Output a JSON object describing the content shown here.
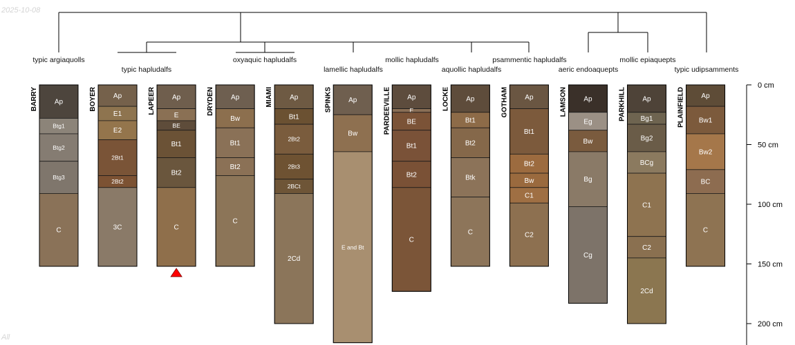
{
  "header": {
    "date_stamp": "2025-10-08",
    "corner_tag": "All"
  },
  "axis": {
    "unit": "cm",
    "max_depth": 200,
    "ticks": [
      {
        "depth": 0,
        "label": "0 cm"
      },
      {
        "depth": 50,
        "label": "50 cm"
      },
      {
        "depth": 100,
        "label": "100 cm"
      },
      {
        "depth": 150,
        "label": "150 cm"
      },
      {
        "depth": 200,
        "label": "200 cm"
      }
    ]
  },
  "taxa": [
    {
      "label": "typic argiaquolls"
    },
    {
      "label": "typic hapludalfs"
    },
    {
      "label": "oxyaquic hapludalfs"
    },
    {
      "label": "lamellic hapludalfs"
    },
    {
      "label": "mollic hapludalfs"
    },
    {
      "label": "aquollic hapludalfs"
    },
    {
      "label": "psammentic hapludalfs"
    },
    {
      "label": "aeric endoaquepts"
    },
    {
      "label": "mollic epiaquepts"
    },
    {
      "label": "typic udipsamments"
    }
  ],
  "profiles": [
    {
      "name": "BARRY",
      "horizons": [
        {
          "name": "Ap",
          "top": 0,
          "bottom": 28,
          "color": "#4d453d"
        },
        {
          "name": "Btg1",
          "top": 28,
          "bottom": 41,
          "color": "#8c8479"
        },
        {
          "name": "Btg2",
          "top": 41,
          "bottom": 64,
          "color": "#857c72"
        },
        {
          "name": "Btg3",
          "top": 64,
          "bottom": 91,
          "color": "#7f766c"
        },
        {
          "name": "C",
          "top": 91,
          "bottom": 152,
          "color": "#8a7258"
        }
      ]
    },
    {
      "name": "BOYER",
      "horizons": [
        {
          "name": "Ap",
          "top": 0,
          "bottom": 18,
          "color": "#75614b"
        },
        {
          "name": "E1",
          "top": 18,
          "bottom": 30,
          "color": "#8e744f"
        },
        {
          "name": "E2",
          "top": 30,
          "bottom": 46,
          "color": "#94754c"
        },
        {
          "name": "2Bt1",
          "top": 46,
          "bottom": 76,
          "color": "#7a5437"
        },
        {
          "name": "2Bt2",
          "top": 76,
          "bottom": 86,
          "color": "#7c5233"
        },
        {
          "name": "3C",
          "top": 86,
          "bottom": 152,
          "color": "#8a7a68"
        }
      ]
    },
    {
      "name": "LAPEER",
      "horizons": [
        {
          "name": "Ap",
          "top": 0,
          "bottom": 20,
          "color": "#6f5e4d"
        },
        {
          "name": "E",
          "top": 20,
          "bottom": 30,
          "color": "#8a7054"
        },
        {
          "name": "BE",
          "top": 30,
          "bottom": 38,
          "color": "#5e4c3a"
        },
        {
          "name": "Bt1",
          "top": 38,
          "bottom": 61,
          "color": "#6b5236"
        },
        {
          "name": "Bt2",
          "top": 61,
          "bottom": 86,
          "color": "#6a563d"
        },
        {
          "name": "C",
          "top": 86,
          "bottom": 152,
          "color": "#8f6f4b"
        }
      ],
      "marker": true
    },
    {
      "name": "DRYDEN",
      "horizons": [
        {
          "name": "Ap",
          "top": 0,
          "bottom": 20,
          "color": "#6e5f50"
        },
        {
          "name": "Bw",
          "top": 20,
          "bottom": 36,
          "color": "#8c6f4e"
        },
        {
          "name": "Bt1",
          "top": 36,
          "bottom": 61,
          "color": "#8a7157"
        },
        {
          "name": "Bt2",
          "top": 61,
          "bottom": 76,
          "color": "#8b7156"
        },
        {
          "name": "C",
          "top": 76,
          "bottom": 152,
          "color": "#8c7558"
        }
      ]
    },
    {
      "name": "MIAMI",
      "horizons": [
        {
          "name": "Ap",
          "top": 0,
          "bottom": 20,
          "color": "#6e5a43"
        },
        {
          "name": "Bt1",
          "top": 20,
          "bottom": 33,
          "color": "#6b5132"
        },
        {
          "name": "2Bt2",
          "top": 33,
          "bottom": 58,
          "color": "#7a5c3d"
        },
        {
          "name": "2Bt3",
          "top": 58,
          "bottom": 79,
          "color": "#6e5232"
        },
        {
          "name": "2BCt",
          "top": 79,
          "bottom": 91,
          "color": "#6e5537"
        },
        {
          "name": "2Cd",
          "top": 91,
          "bottom": 200,
          "color": "#8b755a"
        }
      ]
    },
    {
      "name": "SPINKS",
      "horizons": [
        {
          "name": "Ap",
          "top": 0,
          "bottom": 25,
          "color": "#6f5f4f"
        },
        {
          "name": "Bw",
          "top": 25,
          "bottom": 56,
          "color": "#8e7050"
        },
        {
          "name": "E and Bt",
          "top": 56,
          "bottom": 216,
          "color": "#a88f70"
        }
      ]
    },
    {
      "name": "PARDEEVILLE",
      "horizons": [
        {
          "name": "Ap",
          "top": 0,
          "bottom": 20,
          "color": "#5d4c3d"
        },
        {
          "name": "E",
          "top": 20,
          "bottom": 23,
          "color": "#8a6e55"
        },
        {
          "name": "BE",
          "top": 23,
          "bottom": 38,
          "color": "#7b5337"
        },
        {
          "name": "Bt1",
          "top": 38,
          "bottom": 64,
          "color": "#7a5238"
        },
        {
          "name": "Bt2",
          "top": 64,
          "bottom": 86,
          "color": "#7a5136"
        },
        {
          "name": "C",
          "top": 86,
          "bottom": 173,
          "color": "#7b5538"
        }
      ]
    },
    {
      "name": "LOCKE",
      "horizons": [
        {
          "name": "Ap",
          "top": 0,
          "bottom": 23,
          "color": "#5e4c3b"
        },
        {
          "name": "Bt1",
          "top": 23,
          "bottom": 36,
          "color": "#8d6b48"
        },
        {
          "name": "Bt2",
          "top": 36,
          "bottom": 61,
          "color": "#85684a"
        },
        {
          "name": "Btk",
          "top": 61,
          "bottom": 94,
          "color": "#8c7359"
        },
        {
          "name": "C",
          "top": 94,
          "bottom": 152,
          "color": "#8d755a"
        }
      ]
    },
    {
      "name": "GOTHAM",
      "horizons": [
        {
          "name": "Ap",
          "top": 0,
          "bottom": 20,
          "color": "#6a5642"
        },
        {
          "name": "Bt1",
          "top": 20,
          "bottom": 58,
          "color": "#7c5a3c"
        },
        {
          "name": "Bt2",
          "top": 58,
          "bottom": 74,
          "color": "#9c6b3f"
        },
        {
          "name": "Bw",
          "top": 74,
          "bottom": 86,
          "color": "#9a6a3e"
        },
        {
          "name": "C1",
          "top": 86,
          "bottom": 99,
          "color": "#9f6f43"
        },
        {
          "name": "C2",
          "top": 99,
          "bottom": 152,
          "color": "#8d7050"
        }
      ]
    },
    {
      "name": "LAMSON",
      "horizons": [
        {
          "name": "Ap",
          "top": 0,
          "bottom": 23,
          "color": "#3a3029"
        },
        {
          "name": "Eg",
          "top": 23,
          "bottom": 38,
          "color": "#9b9085"
        },
        {
          "name": "Bw",
          "top": 38,
          "bottom": 56,
          "color": "#7a5b3e"
        },
        {
          "name": "Bg",
          "top": 56,
          "bottom": 102,
          "color": "#8a7a67"
        },
        {
          "name": "Cg",
          "top": 102,
          "bottom": 183,
          "color": "#7d7369"
        }
      ]
    },
    {
      "name": "PARKHILL",
      "horizons": [
        {
          "name": "Ap",
          "top": 0,
          "bottom": 23,
          "color": "#4e4338"
        },
        {
          "name": "Bg1",
          "top": 23,
          "bottom": 33,
          "color": "#6e6450"
        },
        {
          "name": "Bg2",
          "top": 33,
          "bottom": 56,
          "color": "#6a5c48"
        },
        {
          "name": "BCg",
          "top": 56,
          "bottom": 74,
          "color": "#8b7a5f"
        },
        {
          "name": "C1",
          "top": 74,
          "bottom": 127,
          "color": "#8e7350"
        },
        {
          "name": "C2",
          "top": 127,
          "bottom": 145,
          "color": "#8a7050"
        },
        {
          "name": "2Cd",
          "top": 145,
          "bottom": 200,
          "color": "#8b7650"
        }
      ]
    },
    {
      "name": "PLAINFIELD",
      "horizons": [
        {
          "name": "Ap",
          "top": 0,
          "bottom": 18,
          "color": "#5e4c37"
        },
        {
          "name": "Bw1",
          "top": 18,
          "bottom": 41,
          "color": "#7c5a3c"
        },
        {
          "name": "Bw2",
          "top": 41,
          "bottom": 71,
          "color": "#a5774a"
        },
        {
          "name": "BC",
          "top": 71,
          "bottom": 91,
          "color": "#8d6c50"
        },
        {
          "name": "C",
          "top": 91,
          "bottom": 152,
          "color": "#8e7352"
        }
      ]
    }
  ]
}
